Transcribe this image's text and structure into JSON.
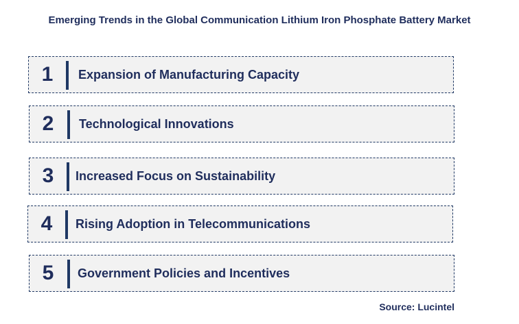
{
  "title": "Emerging Trends in the Global Communication Lithium Iron Phosphate Battery Market",
  "trends": [
    {
      "number": "1",
      "label": "Expansion of Manufacturing Capacity"
    },
    {
      "number": "2",
      "label": "Technological Innovations"
    },
    {
      "number": "3",
      "label": "Increased Focus on Sustainability"
    },
    {
      "number": "4",
      "label": "Rising Adoption in  Telecommunications"
    },
    {
      "number": "5",
      "label": "Government Policies and Incentives"
    }
  ],
  "source": "Source: Lucintel",
  "colors": {
    "text": "#1f2d5c",
    "box_fill": "#f2f2f2",
    "border": "#1f3864"
  }
}
